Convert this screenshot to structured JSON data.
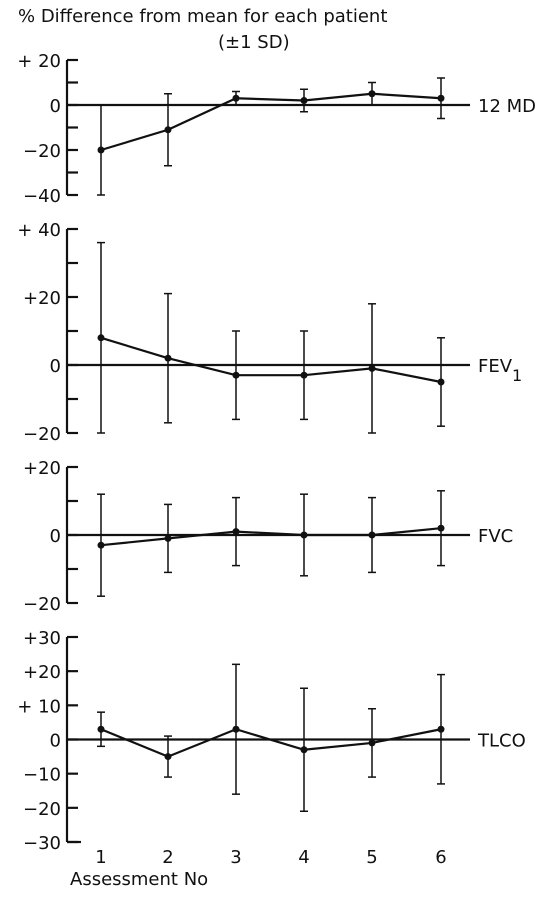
{
  "chart_data": {
    "type": "line",
    "title": "% Difference from mean for each patient",
    "subtitle": "(±1 SD)",
    "xlabel": "Assessment No",
    "x": [
      1,
      2,
      3,
      4,
      5,
      6
    ],
    "x_tick_labels": [
      "1",
      "2",
      "3",
      "4",
      "5",
      "6"
    ],
    "grid": false,
    "legend": "none",
    "panels": [
      {
        "label": "12 MD",
        "ylim": [
          -40,
          20
        ],
        "y_ticks": [
          20,
          0,
          -20,
          -40
        ],
        "y_tick_labels": [
          "+ 20",
          "0",
          "−20",
          "−40"
        ],
        "values": [
          -20,
          -11,
          3,
          2,
          5,
          3
        ],
        "sd": [
          20,
          16,
          3,
          5,
          5,
          9
        ]
      },
      {
        "label": "FEV1",
        "label_main": "FEV",
        "label_sub": "1",
        "ylim": [
          -20,
          40
        ],
        "y_ticks": [
          40,
          20,
          0,
          -20
        ],
        "y_tick_labels": [
          "+ 40",
          "+20",
          "0",
          "−20"
        ],
        "values": [
          8,
          2,
          -3,
          -3,
          -1,
          -5
        ],
        "sd": [
          28,
          19,
          13,
          13,
          19,
          13
        ]
      },
      {
        "label": "FVC",
        "ylim": [
          -20,
          20
        ],
        "y_ticks": [
          20,
          0,
          -20
        ],
        "y_tick_labels": [
          "+20",
          "0",
          "−20"
        ],
        "values": [
          -3,
          -1,
          1,
          0,
          0,
          2
        ],
        "sd": [
          15,
          10,
          10,
          12,
          11,
          11
        ]
      },
      {
        "label": "TLCO",
        "ylim": [
          -30,
          30
        ],
        "y_ticks": [
          30,
          20,
          10,
          0,
          -10,
          -20,
          -30
        ],
        "y_tick_labels": [
          "+30",
          "+20",
          "+ 10",
          "0",
          "−10",
          "−20",
          "−30"
        ],
        "values": [
          3,
          -5,
          3,
          -3,
          -1,
          3
        ],
        "sd": [
          5,
          6,
          19,
          18,
          10,
          16
        ]
      }
    ]
  }
}
